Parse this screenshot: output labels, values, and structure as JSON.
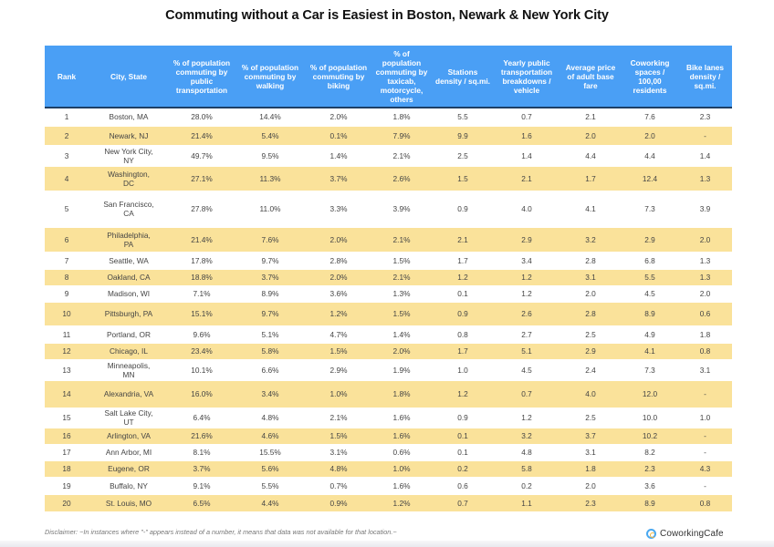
{
  "title": "Commuting without a Car is Easiest in Boston, Newark & New York City",
  "table": {
    "headers": [
      "Rank",
      "City, State",
      "% of population commuting by public transportation",
      "% of population commuting by walking",
      "% of population commuting by biking",
      "% of population commuting by taxicab, motorcycle, others",
      "Stations density / sq.mi.",
      "Yearly public transportation breakdowns / vehicle",
      "Average price of adult base fare",
      "Coworking spaces / 100,00 residents",
      "Bike lanes density / sq.mi."
    ],
    "rows": [
      [
        "1",
        "Boston, MA",
        "28.0%",
        "14.4%",
        "2.0%",
        "1.8%",
        "5.5",
        "0.7",
        "2.1",
        "7.6",
        "2.3"
      ],
      [
        "2",
        "Newark, NJ",
        "21.4%",
        "5.4%",
        "0.1%",
        "7.9%",
        "9.9",
        "1.6",
        "2.0",
        "2.0",
        "-"
      ],
      [
        "3",
        "New York City, NY",
        "49.7%",
        "9.5%",
        "1.4%",
        "2.1%",
        "2.5",
        "1.4",
        "4.4",
        "4.4",
        "1.4"
      ],
      [
        "4",
        "Washington, DC",
        "27.1%",
        "11.3%",
        "3.7%",
        "2.6%",
        "1.5",
        "2.1",
        "1.7",
        "12.4",
        "1.3"
      ],
      [
        "5",
        "San Francisco, CA",
        "27.8%",
        "11.0%",
        "3.3%",
        "3.9%",
        "0.9",
        "4.0",
        "4.1",
        "7.3",
        "3.9"
      ],
      [
        "6",
        "Philadelphia, PA",
        "21.4%",
        "7.6%",
        "2.0%",
        "2.1%",
        "2.1",
        "2.9",
        "3.2",
        "2.9",
        "2.0"
      ],
      [
        "7",
        "Seattle, WA",
        "17.8%",
        "9.7%",
        "2.8%",
        "1.5%",
        "1.7",
        "3.4",
        "2.8",
        "6.8",
        "1.3"
      ],
      [
        "8",
        "Oakland, CA",
        "18.8%",
        "3.7%",
        "2.0%",
        "2.1%",
        "1.2",
        "1.2",
        "3.1",
        "5.5",
        "1.3"
      ],
      [
        "9",
        "Madison, WI",
        "7.1%",
        "8.9%",
        "3.6%",
        "1.3%",
        "0.1",
        "1.2",
        "2.0",
        "4.5",
        "2.0"
      ],
      [
        "10",
        "Pittsburgh, PA",
        "15.1%",
        "9.7%",
        "1.2%",
        "1.5%",
        "0.9",
        "2.6",
        "2.8",
        "8.9",
        "0.6"
      ],
      [
        "11",
        "Portland, OR",
        "9.6%",
        "5.1%",
        "4.7%",
        "1.4%",
        "0.8",
        "2.7",
        "2.5",
        "4.9",
        "1.8"
      ],
      [
        "12",
        "Chicago, IL",
        "23.4%",
        "5.8%",
        "1.5%",
        "2.0%",
        "1.7",
        "5.1",
        "2.9",
        "4.1",
        "0.8"
      ],
      [
        "13",
        "Minneapolis, MN",
        "10.1%",
        "6.6%",
        "2.9%",
        "1.9%",
        "1.0",
        "4.5",
        "2.4",
        "7.3",
        "3.1"
      ],
      [
        "14",
        "Alexandria, VA",
        "16.0%",
        "3.4%",
        "1.0%",
        "1.8%",
        "1.2",
        "0.7",
        "4.0",
        "12.0",
        "-"
      ],
      [
        "15",
        "Salt Lake City, UT",
        "6.4%",
        "4.8%",
        "2.1%",
        "1.6%",
        "0.9",
        "1.2",
        "2.5",
        "10.0",
        "1.0"
      ],
      [
        "16",
        "Arlington, VA",
        "21.6%",
        "4.6%",
        "1.5%",
        "1.6%",
        "0.1",
        "3.2",
        "3.7",
        "10.2",
        "-"
      ],
      [
        "17",
        "Ann Arbor, MI",
        "8.1%",
        "15.5%",
        "3.1%",
        "0.6%",
        "0.1",
        "4.8",
        "3.1",
        "8.2",
        "-"
      ],
      [
        "18",
        "Eugene, OR",
        "3.7%",
        "5.6%",
        "4.8%",
        "1.0%",
        "0.2",
        "5.8",
        "1.8",
        "2.3",
        "4.3"
      ],
      [
        "19",
        "Buffalo, NY",
        "9.1%",
        "5.5%",
        "0.7%",
        "1.6%",
        "0.6",
        "0.2",
        "2.0",
        "3.6",
        "-"
      ],
      [
        "20",
        "St. Louis, MO",
        "6.5%",
        "4.4%",
        "0.9%",
        "1.2%",
        "0.7",
        "1.1",
        "2.3",
        "8.9",
        "0.8"
      ]
    ]
  },
  "disclaimer": "Disclaimer: ~In instances where \"-\" appears instead of a number, it means that data was not available for that location.~",
  "brand": {
    "name": "CoworkingCafe",
    "icon": "coworkingcafe-logo-icon"
  },
  "colors": {
    "header_bg": "#4a9ff5",
    "header_border": "#1e3f66",
    "even_row_bg": "#fae29a",
    "odd_row_bg": "#ffffff"
  }
}
